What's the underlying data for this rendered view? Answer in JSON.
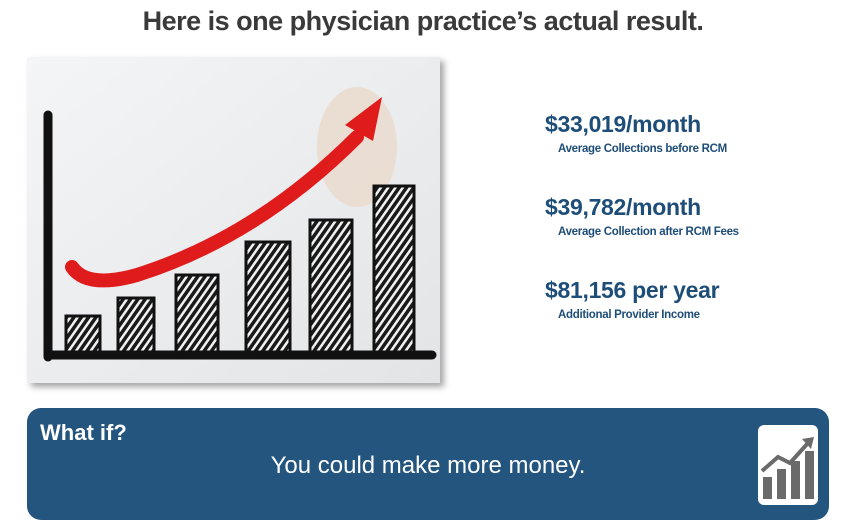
{
  "header": {
    "title": "Here is one physician practice’s actual result."
  },
  "stats": [
    {
      "value": "$33,019/month",
      "label": "Average Collections before RCM"
    },
    {
      "value": "$39,782/month",
      "label": "Average Collection after RCM Fees"
    },
    {
      "value": "$81,156 per year",
      "label": "Additional Provider Income"
    }
  ],
  "banner": {
    "title": "What if?",
    "text": "You could make more money."
  }
}
